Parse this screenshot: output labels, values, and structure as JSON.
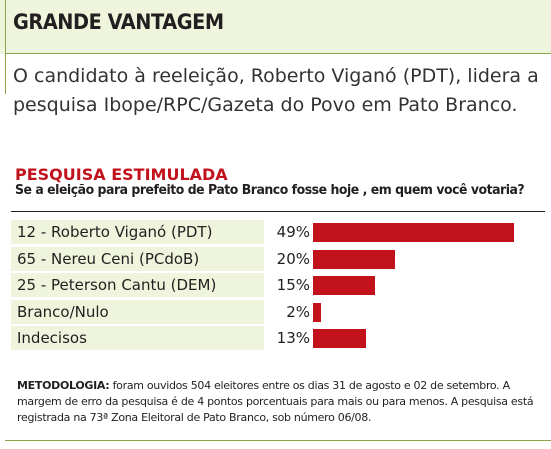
{
  "header": {
    "title": "GRANDE VANTAGEM"
  },
  "intro": {
    "text": "O candidato à reeleição, Roberto Viganó (PDT), lidera a pesquisa Ibope/RPC/Gazeta do Povo em Pato Branco."
  },
  "poll": {
    "title": "PESQUISA ESTIMULADA",
    "question": "Se a eleição para prefeito de Pato Branco fosse hoje , em quem você votaria?"
  },
  "chart_data": {
    "type": "bar",
    "orientation": "horizontal",
    "title": "PESQUISA ESTIMULADA",
    "subtitle": "Se a eleição para prefeito de Pato Branco fosse hoje , em quem você votaria?",
    "categories": [
      "12 - Roberto Viganó (PDT)",
      "65 - Nereu Ceni (PCdoB)",
      "25 - Peterson Cantu (DEM)",
      "Branco/Nulo",
      "Indecisos"
    ],
    "values": [
      49,
      20,
      15,
      2,
      13
    ],
    "value_labels": [
      "49%",
      "20%",
      "15%",
      "2%",
      "13%"
    ],
    "unit": "%",
    "xlim": [
      0,
      100
    ],
    "bar_color": "#c2121c",
    "row_shade_color": "#eef5dc",
    "grid": false,
    "legend": "none"
  },
  "methodology": {
    "lead": "METODOLOGIA:",
    "text": " foram ouvidos 504 eleitores entre os dias 31 de agosto e 02 de setembro. A margem de erro da pesquisa é de 4 pontos porcentuais para mais ou para menos. A pesquisa está registrada na 73ª Zona Eleitoral de Pato Branco, sob número 06/08."
  },
  "colors": {
    "accent": "#c2121c",
    "header_background": "#eef5dc",
    "rule_green": "#8aa54a"
  }
}
